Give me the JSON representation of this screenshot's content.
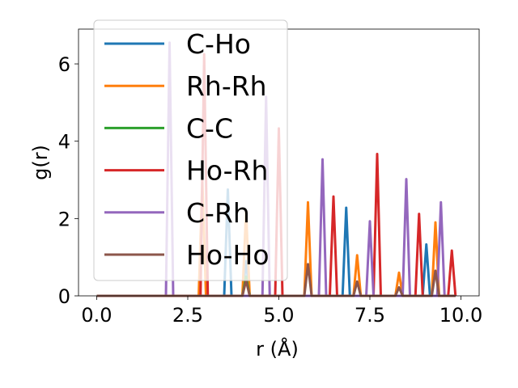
{
  "chart_data": {
    "type": "line",
    "title": "",
    "xlabel": "r (Å)",
    "ylabel": "g(r)",
    "xlim": [
      -0.5,
      10.5
    ],
    "ylim": [
      0,
      6.9
    ],
    "xticks": [
      0.0,
      2.5,
      5.0,
      7.5,
      10.0
    ],
    "xtick_labels": [
      "0.0",
      "2.5",
      "5.0",
      "7.5",
      "10.0"
    ],
    "yticks": [
      0,
      2,
      4,
      6
    ],
    "ytick_labels": [
      "0",
      "2",
      "4",
      "6"
    ],
    "grid": false,
    "legend_position": "upper-left",
    "peak_halfwidth": 0.1,
    "series": [
      {
        "name": "C-Ho",
        "color": "#1f77b4",
        "peaks": [
          [
            3.6,
            2.75
          ],
          [
            4.1,
            0.9
          ],
          [
            6.85,
            2.28
          ],
          [
            9.05,
            1.33
          ]
        ]
      },
      {
        "name": "Rh-Rh",
        "color": "#ff7f0e",
        "peaks": [
          [
            2.9,
            3.0
          ],
          [
            4.1,
            2.2
          ],
          [
            5.8,
            2.42
          ],
          [
            7.15,
            1.05
          ],
          [
            8.3,
            0.6
          ],
          [
            9.3,
            1.9
          ]
        ]
      },
      {
        "name": "C-C",
        "color": "#2ca02c",
        "peaks": [
          [
            4.1,
            0.5
          ]
        ]
      },
      {
        "name": "Ho-Rh",
        "color": "#d62728",
        "peaks": [
          [
            2.95,
            6.25
          ],
          [
            5.0,
            4.33
          ],
          [
            6.5,
            2.57
          ],
          [
            7.7,
            3.67
          ],
          [
            8.85,
            2.12
          ],
          [
            9.75,
            1.17
          ]
        ]
      },
      {
        "name": "C-Rh",
        "color": "#9467bd",
        "peaks": [
          [
            2.0,
            6.55
          ],
          [
            4.65,
            5.15
          ],
          [
            6.2,
            3.53
          ],
          [
            7.5,
            1.93
          ],
          [
            8.5,
            3.02
          ],
          [
            9.45,
            2.42
          ]
        ]
      },
      {
        "name": "Ho-Ho",
        "color": "#8c564b",
        "peaks": [
          [
            4.1,
            0.4
          ],
          [
            5.8,
            0.82
          ],
          [
            7.15,
            0.37
          ],
          [
            8.3,
            0.22
          ],
          [
            9.3,
            0.65
          ]
        ]
      }
    ]
  }
}
